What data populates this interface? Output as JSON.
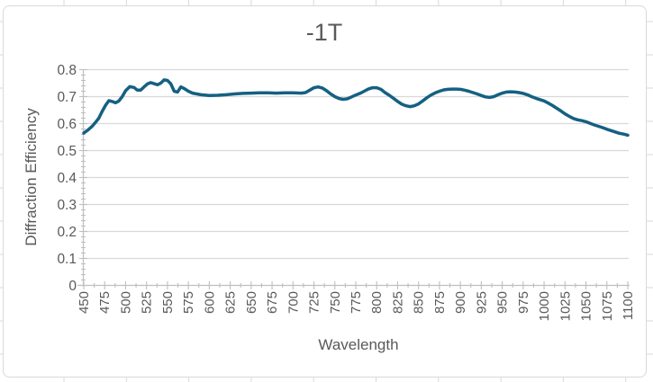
{
  "window": {
    "background_color": "#ffffff",
    "worksheet_gridline_color": "#d9d9d9",
    "chart_border_color": "#d9d9d9",
    "chart_fill_color": "#ffffff"
  },
  "chart": {
    "title": "-1T",
    "x_axis_title": "Wavelength",
    "y_axis_title": "Diffraction Efficiency",
    "text_color": "#595959",
    "line_color": "#156082",
    "gridline_color": "#d9d9d9",
    "axis_color": "#bfbfbf",
    "x_tick_labels": [
      "450",
      "475",
      "500",
      "525",
      "550",
      "575",
      "600",
      "625",
      "650",
      "675",
      "700",
      "725",
      "750",
      "775",
      "800",
      "825",
      "850",
      "875",
      "900",
      "925",
      "950",
      "975",
      "1000",
      "1025",
      "1050",
      "1075",
      "1100"
    ],
    "y_tick_labels": [
      "0",
      "0.1",
      "0.2",
      "0.3",
      "0.4",
      "0.5",
      "0.6",
      "0.7",
      "0.8"
    ]
  },
  "chart_data": {
    "type": "line",
    "title": "-1T",
    "xlabel": "Wavelength",
    "ylabel": "Diffraction Efficiency",
    "xlim": [
      450,
      1100
    ],
    "ylim": [
      0,
      0.8
    ],
    "x_tick_step": 25,
    "x_minor_tick_step": 12.5,
    "y_tick_step": 0.1,
    "y_minor_tick_step": 0.02,
    "grid": true,
    "legend": false,
    "series": [
      {
        "name": "-1T",
        "x": [
          450,
          455,
          460,
          465,
          468,
          472,
          476,
          480,
          484,
          488,
          492,
          496,
          500,
          505,
          510,
          514,
          518,
          522,
          526,
          530,
          534,
          538,
          542,
          546,
          550,
          554,
          558,
          562,
          566,
          570,
          575,
          580,
          585,
          590,
          600,
          610,
          620,
          630,
          640,
          650,
          660,
          670,
          680,
          690,
          700,
          710,
          715,
          720,
          725,
          730,
          735,
          740,
          745,
          750,
          755,
          760,
          765,
          770,
          775,
          780,
          785,
          790,
          795,
          800,
          805,
          810,
          815,
          820,
          825,
          830,
          835,
          840,
          845,
          850,
          855,
          860,
          865,
          870,
          875,
          880,
          885,
          890,
          895,
          900,
          905,
          910,
          915,
          920,
          925,
          930,
          935,
          940,
          945,
          950,
          955,
          960,
          965,
          970,
          975,
          980,
          985,
          990,
          995,
          1000,
          1005,
          1010,
          1015,
          1020,
          1025,
          1030,
          1035,
          1040,
          1045,
          1050,
          1055,
          1060,
          1065,
          1070,
          1075,
          1080,
          1085,
          1090,
          1095,
          1100
        ],
        "y": [
          0.565,
          0.576,
          0.59,
          0.608,
          0.62,
          0.645,
          0.668,
          0.685,
          0.682,
          0.677,
          0.684,
          0.7,
          0.722,
          0.737,
          0.734,
          0.724,
          0.724,
          0.736,
          0.747,
          0.752,
          0.748,
          0.744,
          0.75,
          0.762,
          0.76,
          0.748,
          0.72,
          0.717,
          0.736,
          0.73,
          0.72,
          0.713,
          0.71,
          0.707,
          0.704,
          0.705,
          0.707,
          0.71,
          0.712,
          0.713,
          0.714,
          0.714,
          0.713,
          0.714,
          0.714,
          0.713,
          0.715,
          0.724,
          0.733,
          0.736,
          0.732,
          0.722,
          0.71,
          0.7,
          0.693,
          0.69,
          0.692,
          0.699,
          0.706,
          0.712,
          0.72,
          0.728,
          0.733,
          0.733,
          0.727,
          0.715,
          0.705,
          0.694,
          0.682,
          0.672,
          0.666,
          0.663,
          0.666,
          0.673,
          0.684,
          0.696,
          0.706,
          0.714,
          0.72,
          0.725,
          0.727,
          0.728,
          0.728,
          0.727,
          0.724,
          0.72,
          0.715,
          0.71,
          0.704,
          0.699,
          0.697,
          0.7,
          0.707,
          0.713,
          0.717,
          0.718,
          0.717,
          0.715,
          0.712,
          0.707,
          0.7,
          0.694,
          0.689,
          0.684,
          0.676,
          0.667,
          0.657,
          0.647,
          0.636,
          0.627,
          0.619,
          0.614,
          0.611,
          0.607,
          0.601,
          0.595,
          0.59,
          0.585,
          0.579,
          0.574,
          0.569,
          0.564,
          0.561,
          0.557
        ]
      }
    ]
  }
}
